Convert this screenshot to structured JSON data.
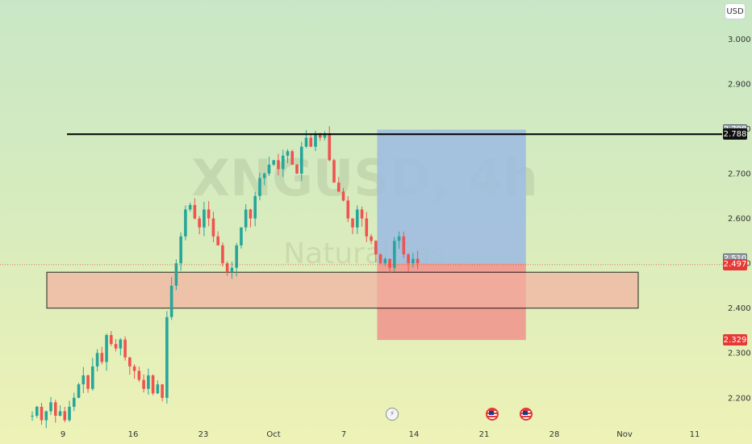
{
  "chart_data": {
    "type": "candlestick",
    "watermark_symbol": "XNGUSD, 4h",
    "watermark_brand": "NaturalGas",
    "currency": "USD",
    "y_ticks": [
      "3.000",
      "2.900",
      "2.800",
      "2.700",
      "2.600",
      "2.500",
      "2.400",
      "2.300",
      "2.200"
    ],
    "y_tick_values": [
      3.0,
      2.9,
      2.8,
      2.7,
      2.6,
      2.5,
      2.4,
      2.3,
      2.2
    ],
    "ylim": [
      2.142,
      3.08
    ],
    "x_ticks": [
      "9",
      "16",
      "23",
      "Oct",
      "7",
      "14",
      "21",
      "28",
      "Nov",
      "11"
    ],
    "x_tick_index": [
      0,
      42,
      84,
      126,
      168,
      210,
      252,
      294,
      336,
      378
    ],
    "bar_count": 408,
    "closes": [
      2.16,
      2.18,
      2.15,
      2.17,
      2.19,
      2.16,
      2.17,
      2.15,
      2.18,
      2.2,
      2.23,
      2.25,
      2.22,
      2.27,
      2.3,
      2.28,
      2.34,
      2.32,
      2.31,
      2.33,
      2.29,
      2.27,
      2.26,
      2.24,
      2.22,
      2.25,
      2.21,
      2.23,
      2.2,
      2.38,
      2.45,
      2.5,
      2.56,
      2.62,
      2.63,
      2.6,
      2.58,
      2.62,
      2.6,
      2.56,
      2.54,
      2.5,
      2.48,
      2.49,
      2.54,
      2.58,
      2.62,
      2.6,
      2.65,
      2.69,
      2.7,
      2.72,
      2.73,
      2.71,
      2.74,
      2.75,
      2.72,
      2.7,
      2.76,
      2.78,
      2.76,
      2.79,
      2.78,
      2.79,
      2.73,
      2.68,
      2.66,
      2.64,
      2.6,
      2.58,
      2.62,
      2.6,
      2.56,
      2.55,
      2.52,
      2.5,
      2.51,
      2.49,
      2.55,
      2.56,
      2.52,
      2.5,
      2.51,
      2.5
    ],
    "last_price": "2.497",
    "last_price_value": 2.497,
    "other_price_labels": [
      {
        "text": "2.798",
        "value": 2.798
      },
      {
        "text": "2.788",
        "value": 2.788
      },
      {
        "text": "2.510",
        "value": 2.51
      },
      {
        "text": "2.329",
        "value": 2.329
      }
    ],
    "resistance_line": 2.788,
    "support_zone": [
      2.4,
      2.48
    ],
    "position": {
      "entry": 2.5,
      "target": 2.798,
      "stop": 2.329
    },
    "colors": {
      "up": "#26a69a",
      "down": "#ef5350",
      "zone_fill": "#f3b0a0",
      "target_fill": "#9fbde0",
      "stop_fill": "#f28585",
      "last_price_bg": "#e53935",
      "dark_label_bg": "#111111",
      "gray_label_bg": "#9aa3ad"
    },
    "events": [
      {
        "type": "bolt-icon",
        "index": 197
      },
      {
        "type": "flag-icon",
        "index": 257
      },
      {
        "type": "flag-icon",
        "index": 277
      }
    ]
  }
}
